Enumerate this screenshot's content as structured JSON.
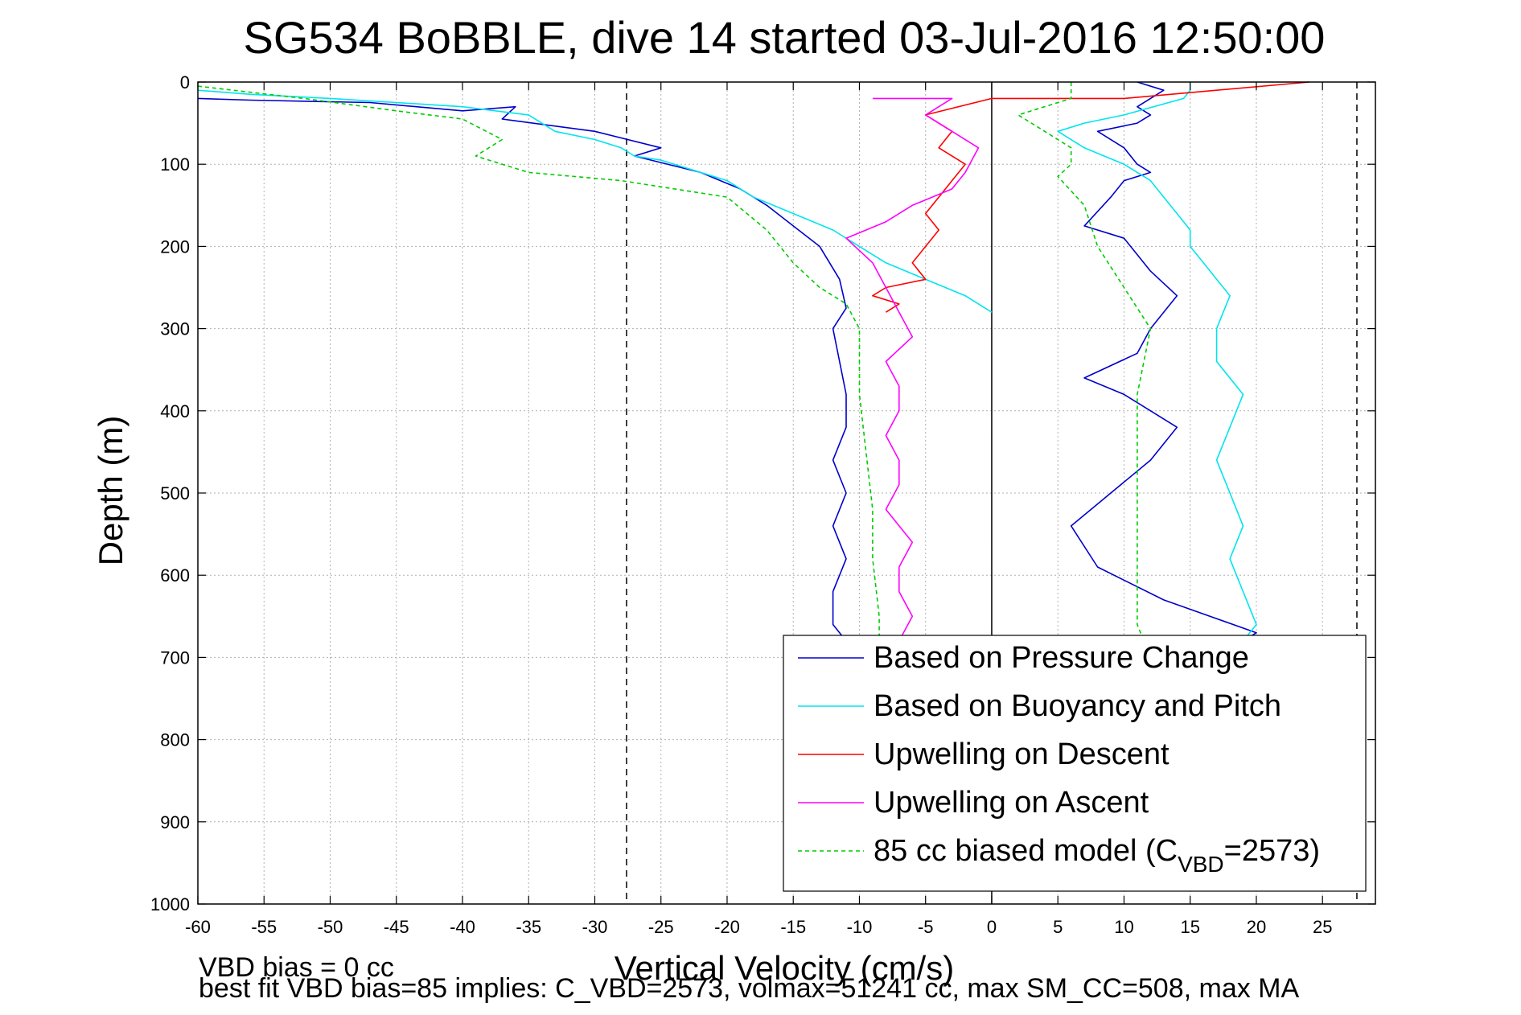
{
  "chart_data": {
    "type": "line",
    "title": "SG534 BoBBLE, dive 14 started 03-Jul-2016 12:50:00",
    "xlabel": "Vertical Velocity (cm/s)",
    "ylabel": "Depth (m)",
    "xlim": [
      -60,
      29
    ],
    "ylim": [
      0,
      1000
    ],
    "y_reversed": true,
    "grid": true,
    "xticks": [
      -60,
      -55,
      -50,
      -45,
      -40,
      -35,
      -30,
      -25,
      -20,
      -15,
      -10,
      -5,
      0,
      5,
      10,
      15,
      20,
      25
    ],
    "yticks": [
      0,
      100,
      200,
      300,
      400,
      500,
      600,
      700,
      800,
      900,
      1000
    ],
    "reference_lines": [
      {
        "x": -27.6,
        "style": "dashed",
        "color": "#000000"
      },
      {
        "x": 0,
        "style": "solid",
        "color": "#000000"
      },
      {
        "x": 27.6,
        "style": "dashed",
        "color": "#000000"
      }
    ],
    "legend_position": "bottom-right",
    "series": [
      {
        "name": "Based on Pressure Change",
        "color": "#0000cc",
        "style": "solid",
        "x": [
          -60,
          -56,
          -47,
          -40,
          -36,
          -37,
          -30,
          -25,
          -27,
          -22,
          -19,
          -17,
          -15,
          -13,
          -11.5,
          -11,
          -12,
          -11.5,
          -11,
          -11,
          -12,
          -11,
          -12,
          -11,
          -12,
          -12,
          -11,
          -10.5
        ],
        "y": [
          20,
          22,
          25,
          35,
          30,
          45,
          60,
          80,
          90,
          110,
          130,
          150,
          175,
          200,
          240,
          275,
          300,
          340,
          380,
          420,
          460,
          500,
          540,
          580,
          620,
          660,
          680,
          700
        ]
      },
      {
        "name": "Based on Pressure Change",
        "color": "#0000cc",
        "style": "solid",
        "x": [
          17,
          20,
          13,
          8,
          6,
          9,
          12,
          14,
          10,
          7,
          11,
          12,
          14,
          12,
          10,
          7,
          9,
          10,
          12,
          11,
          10,
          8,
          11,
          12,
          11,
          12,
          13,
          11
        ],
        "y": [
          700,
          670,
          630,
          590,
          540,
          500,
          460,
          420,
          380,
          360,
          330,
          300,
          260,
          230,
          190,
          175,
          140,
          120,
          110,
          100,
          80,
          60,
          50,
          40,
          30,
          20,
          10,
          0
        ]
      },
      {
        "name": "Based on Buoyancy and Pitch",
        "color": "#00e5ee",
        "style": "solid",
        "x": [
          15,
          15,
          14.5,
          10,
          7,
          5,
          7,
          10,
          12,
          13,
          14,
          15,
          15,
          16,
          17,
          18,
          17,
          17,
          19,
          18,
          17,
          18,
          19,
          18,
          19,
          20,
          19,
          20
        ],
        "y": [
          0,
          10,
          20,
          40,
          50,
          60,
          80,
          100,
          120,
          140,
          160,
          180,
          200,
          220,
          240,
          260,
          300,
          340,
          380,
          420,
          460,
          500,
          540,
          580,
          620,
          660,
          680,
          700
        ]
      },
      {
        "name": "Based on Buoyancy and Pitch",
        "color": "#00e5ee",
        "style": "solid",
        "x": [
          0,
          -2,
          -5,
          -8,
          -10,
          -12,
          -15,
          -18,
          -20,
          -22,
          -25,
          -27,
          -28,
          -30,
          -33,
          -35,
          -40,
          -45,
          -50,
          -56,
          -60
        ],
        "y": [
          280,
          260,
          240,
          220,
          200,
          180,
          160,
          140,
          120,
          110,
          95,
          90,
          80,
          70,
          60,
          40,
          30,
          25,
          20,
          15,
          10
        ]
      },
      {
        "name": "Upwelling on Descent",
        "color": "#ff0000",
        "style": "solid",
        "x": [
          24,
          10,
          0,
          -5,
          -3,
          -4,
          -2,
          -3,
          -4,
          -5,
          -4,
          -5,
          -6,
          -5,
          -8,
          -9,
          -7,
          -8
        ],
        "y": [
          0,
          20,
          20,
          40,
          60,
          80,
          100,
          120,
          140,
          160,
          180,
          200,
          220,
          240,
          250,
          260,
          270,
          280
        ]
      },
      {
        "name": "Upwelling on Ascent",
        "color": "#ff00ff",
        "style": "solid",
        "x": [
          -7,
          -6,
          -7,
          -7,
          -6,
          -8,
          -7,
          -7,
          -8,
          -7,
          -7,
          -8,
          -6,
          -7,
          -8,
          -9,
          -11,
          -8,
          -6,
          -3,
          -2,
          -1,
          -3,
          -5,
          -3,
          -9
        ],
        "y": [
          680,
          650,
          620,
          590,
          560,
          520,
          490,
          460,
          430,
          400,
          370,
          340,
          310,
          280,
          250,
          220,
          190,
          170,
          150,
          130,
          110,
          80,
          60,
          40,
          20,
          20
        ]
      },
      {
        "name": "85 cc biased model (C",
        "name_subscript": "VBD",
        "name_suffix": "=2573)",
        "color": "#00cc00",
        "style": "dashed",
        "x": [
          -60,
          -52,
          -45,
          -40,
          -37,
          -39,
          -35,
          -28,
          -20,
          -17,
          -15,
          -13,
          -11,
          -10,
          -10,
          -9.5,
          -9,
          -9,
          -8.5,
          -8.5
        ],
        "y": [
          5,
          20,
          35,
          45,
          70,
          90,
          110,
          120,
          140,
          180,
          220,
          250,
          270,
          300,
          380,
          450,
          520,
          580,
          650,
          700
        ]
      },
      {
        "name": "85 cc biased model (C",
        "name_subscript": "VBD",
        "name_suffix": "=2573)",
        "color": "#00cc00",
        "style": "dashed",
        "x": [
          6,
          6,
          2,
          4,
          6,
          6,
          5,
          7,
          8,
          10,
          12,
          11,
          11,
          11,
          11,
          11,
          11,
          12
        ],
        "y": [
          0,
          20,
          40,
          60,
          80,
          100,
          115,
          150,
          200,
          250,
          300,
          380,
          450,
          520,
          580,
          620,
          660,
          700
        ]
      }
    ],
    "legend": [
      {
        "label": "Based on Pressure Change",
        "color": "#0000cc",
        "style": "solid"
      },
      {
        "label": "Based on Buoyancy and Pitch",
        "color": "#00e5ee",
        "style": "solid"
      },
      {
        "label": "Upwelling on Descent",
        "color": "#ff0000",
        "style": "solid"
      },
      {
        "label": "Upwelling on Ascent",
        "color": "#ff00ff",
        "style": "solid"
      },
      {
        "label": "85 cc biased model (C",
        "sub": "VBD",
        "suffix": "=2573)",
        "color": "#00cc00",
        "style": "dashed"
      }
    ],
    "annotations": [
      "VBD bias = 0 cc",
      "best fit VBD bias=85 implies: C_VBD=2573, volmax=51241 cc, max SM_CC=508, max MA"
    ]
  }
}
